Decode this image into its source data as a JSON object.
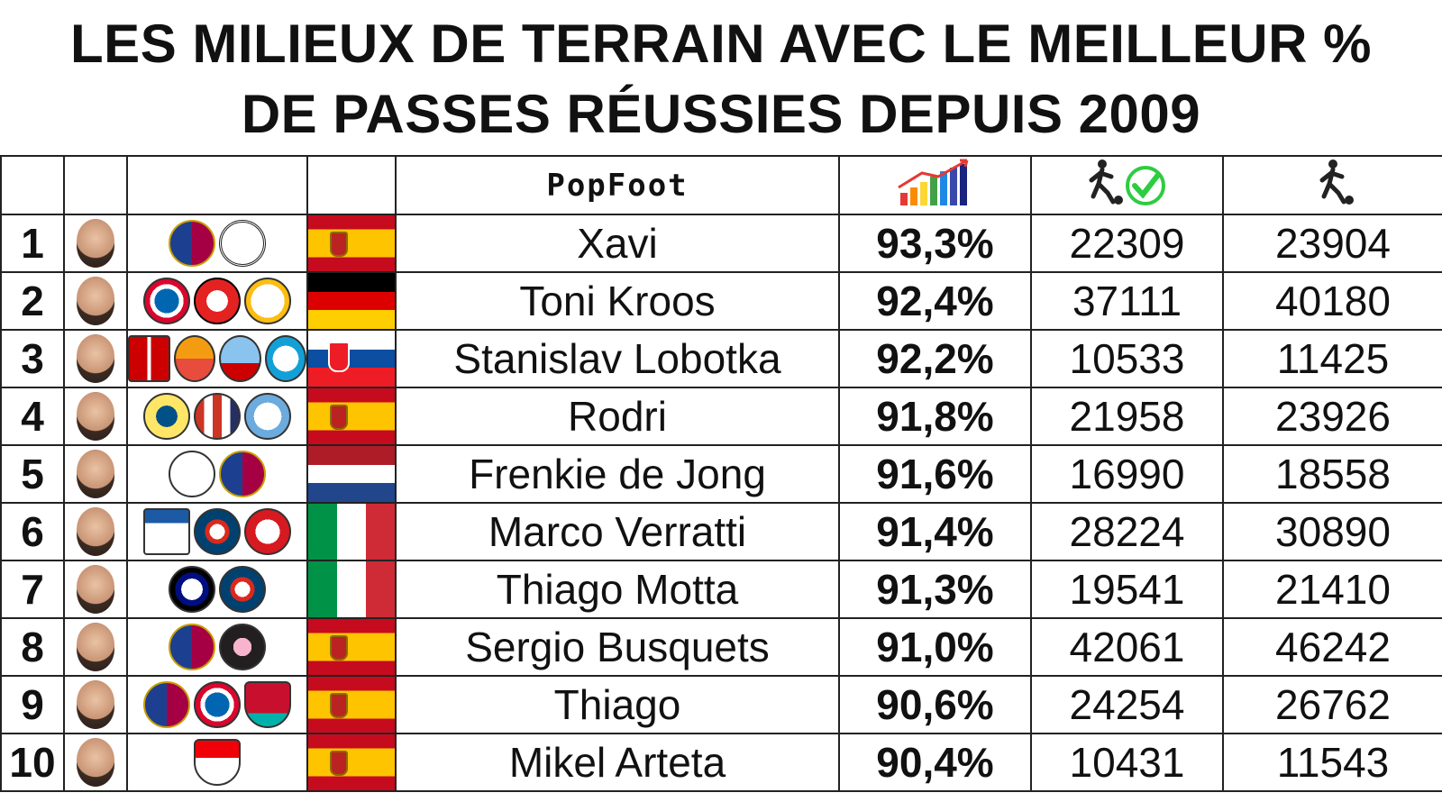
{
  "title_line1": "LES MILIEUX DE TERRAIN AVEC LE MEILLEUR %",
  "title_line2": "DE PASSES RÉUSSIES DEPUIS 2009",
  "brand": "PopFoot",
  "header_icons": {
    "percent": "bar-chart-arrow-icon",
    "completed": "player-kick-check-icon",
    "attempted": "player-kick-icon"
  },
  "chart_data": {
    "type": "table",
    "title": "LES MILIEUX DE TERRAIN AVEC LE MEILLEUR % DE PASSES RÉUSSIES DEPUIS 2009",
    "columns": [
      "rank",
      "player",
      "pass_pct",
      "passes_completed",
      "passes_attempted"
    ],
    "rows": [
      {
        "rank": "1",
        "player": "Xavi",
        "pct": "93,3%",
        "completed": "22309",
        "attempted": "23904",
        "flag": "es",
        "clubs": [
          "fc-barcelona-crest",
          "al-sadd-crest"
        ]
      },
      {
        "rank": "2",
        "player": "Toni Kroos",
        "pct": "92,4%",
        "completed": "37111",
        "attempted": "40180",
        "flag": "de",
        "clubs": [
          "bayern-munich-crest",
          "bayer-leverkusen-crest",
          "real-madrid-crest"
        ]
      },
      {
        "rank": "3",
        "player": "Stanislav Lobotka",
        "pct": "92,2%",
        "completed": "10533",
        "attempted": "11425",
        "flag": "sk",
        "clubs": [
          "trencin-crest",
          "nordsjaelland-crest",
          "celta-vigo-crest",
          "napoli-crest"
        ]
      },
      {
        "rank": "4",
        "player": "Rodri",
        "pct": "91,8%",
        "completed": "21958",
        "attempted": "23926",
        "flag": "es",
        "clubs": [
          "villarreal-crest",
          "atletico-madrid-crest",
          "manchester-city-crest"
        ]
      },
      {
        "rank": "5",
        "player": "Frenkie de Jong",
        "pct": "91,6%",
        "completed": "16990",
        "attempted": "18558",
        "flag": "nl",
        "clubs": [
          "ajax-crest",
          "fc-barcelona-crest"
        ]
      },
      {
        "rank": "6",
        "player": "Marco Verratti",
        "pct": "91,4%",
        "completed": "28224",
        "attempted": "30890",
        "flag": "it",
        "clubs": [
          "pescara-crest",
          "psg-crest",
          "al-arabi-crest"
        ]
      },
      {
        "rank": "7",
        "player": "Thiago Motta",
        "pct": "91,3%",
        "completed": "19541",
        "attempted": "21410",
        "flag": "it",
        "clubs": [
          "inter-crest",
          "psg-crest"
        ]
      },
      {
        "rank": "8",
        "player": "Sergio Busquets",
        "pct": "91,0%",
        "completed": "42061",
        "attempted": "46242",
        "flag": "es",
        "clubs": [
          "fc-barcelona-crest",
          "inter-miami-crest"
        ]
      },
      {
        "rank": "9",
        "player": "Thiago",
        "pct": "90,6%",
        "completed": "24254",
        "attempted": "26762",
        "flag": "es",
        "clubs": [
          "fc-barcelona-crest",
          "bayern-munich-crest",
          "liverpool-crest"
        ]
      },
      {
        "rank": "10",
        "player": "Mikel Arteta",
        "pct": "90,4%",
        "completed": "10431",
        "attempted": "11543",
        "flag": "es",
        "clubs": [
          "arsenal-crest"
        ]
      }
    ]
  },
  "colors": {
    "barca_blue": "#1d3f8f",
    "barca_red": "#a50044",
    "es_red": "#c60b1e",
    "es_yellow": "#ffc400",
    "de_black": "#000000",
    "de_red": "#dd0000",
    "de_gold": "#ffce00",
    "nl_red": "#ae1c28",
    "nl_blue": "#21468b",
    "it_green": "#009246",
    "it_red": "#ce2b37",
    "sk_blue": "#0b4ea2",
    "sk_red": "#ee1c25",
    "check_green": "#2ecc40"
  }
}
